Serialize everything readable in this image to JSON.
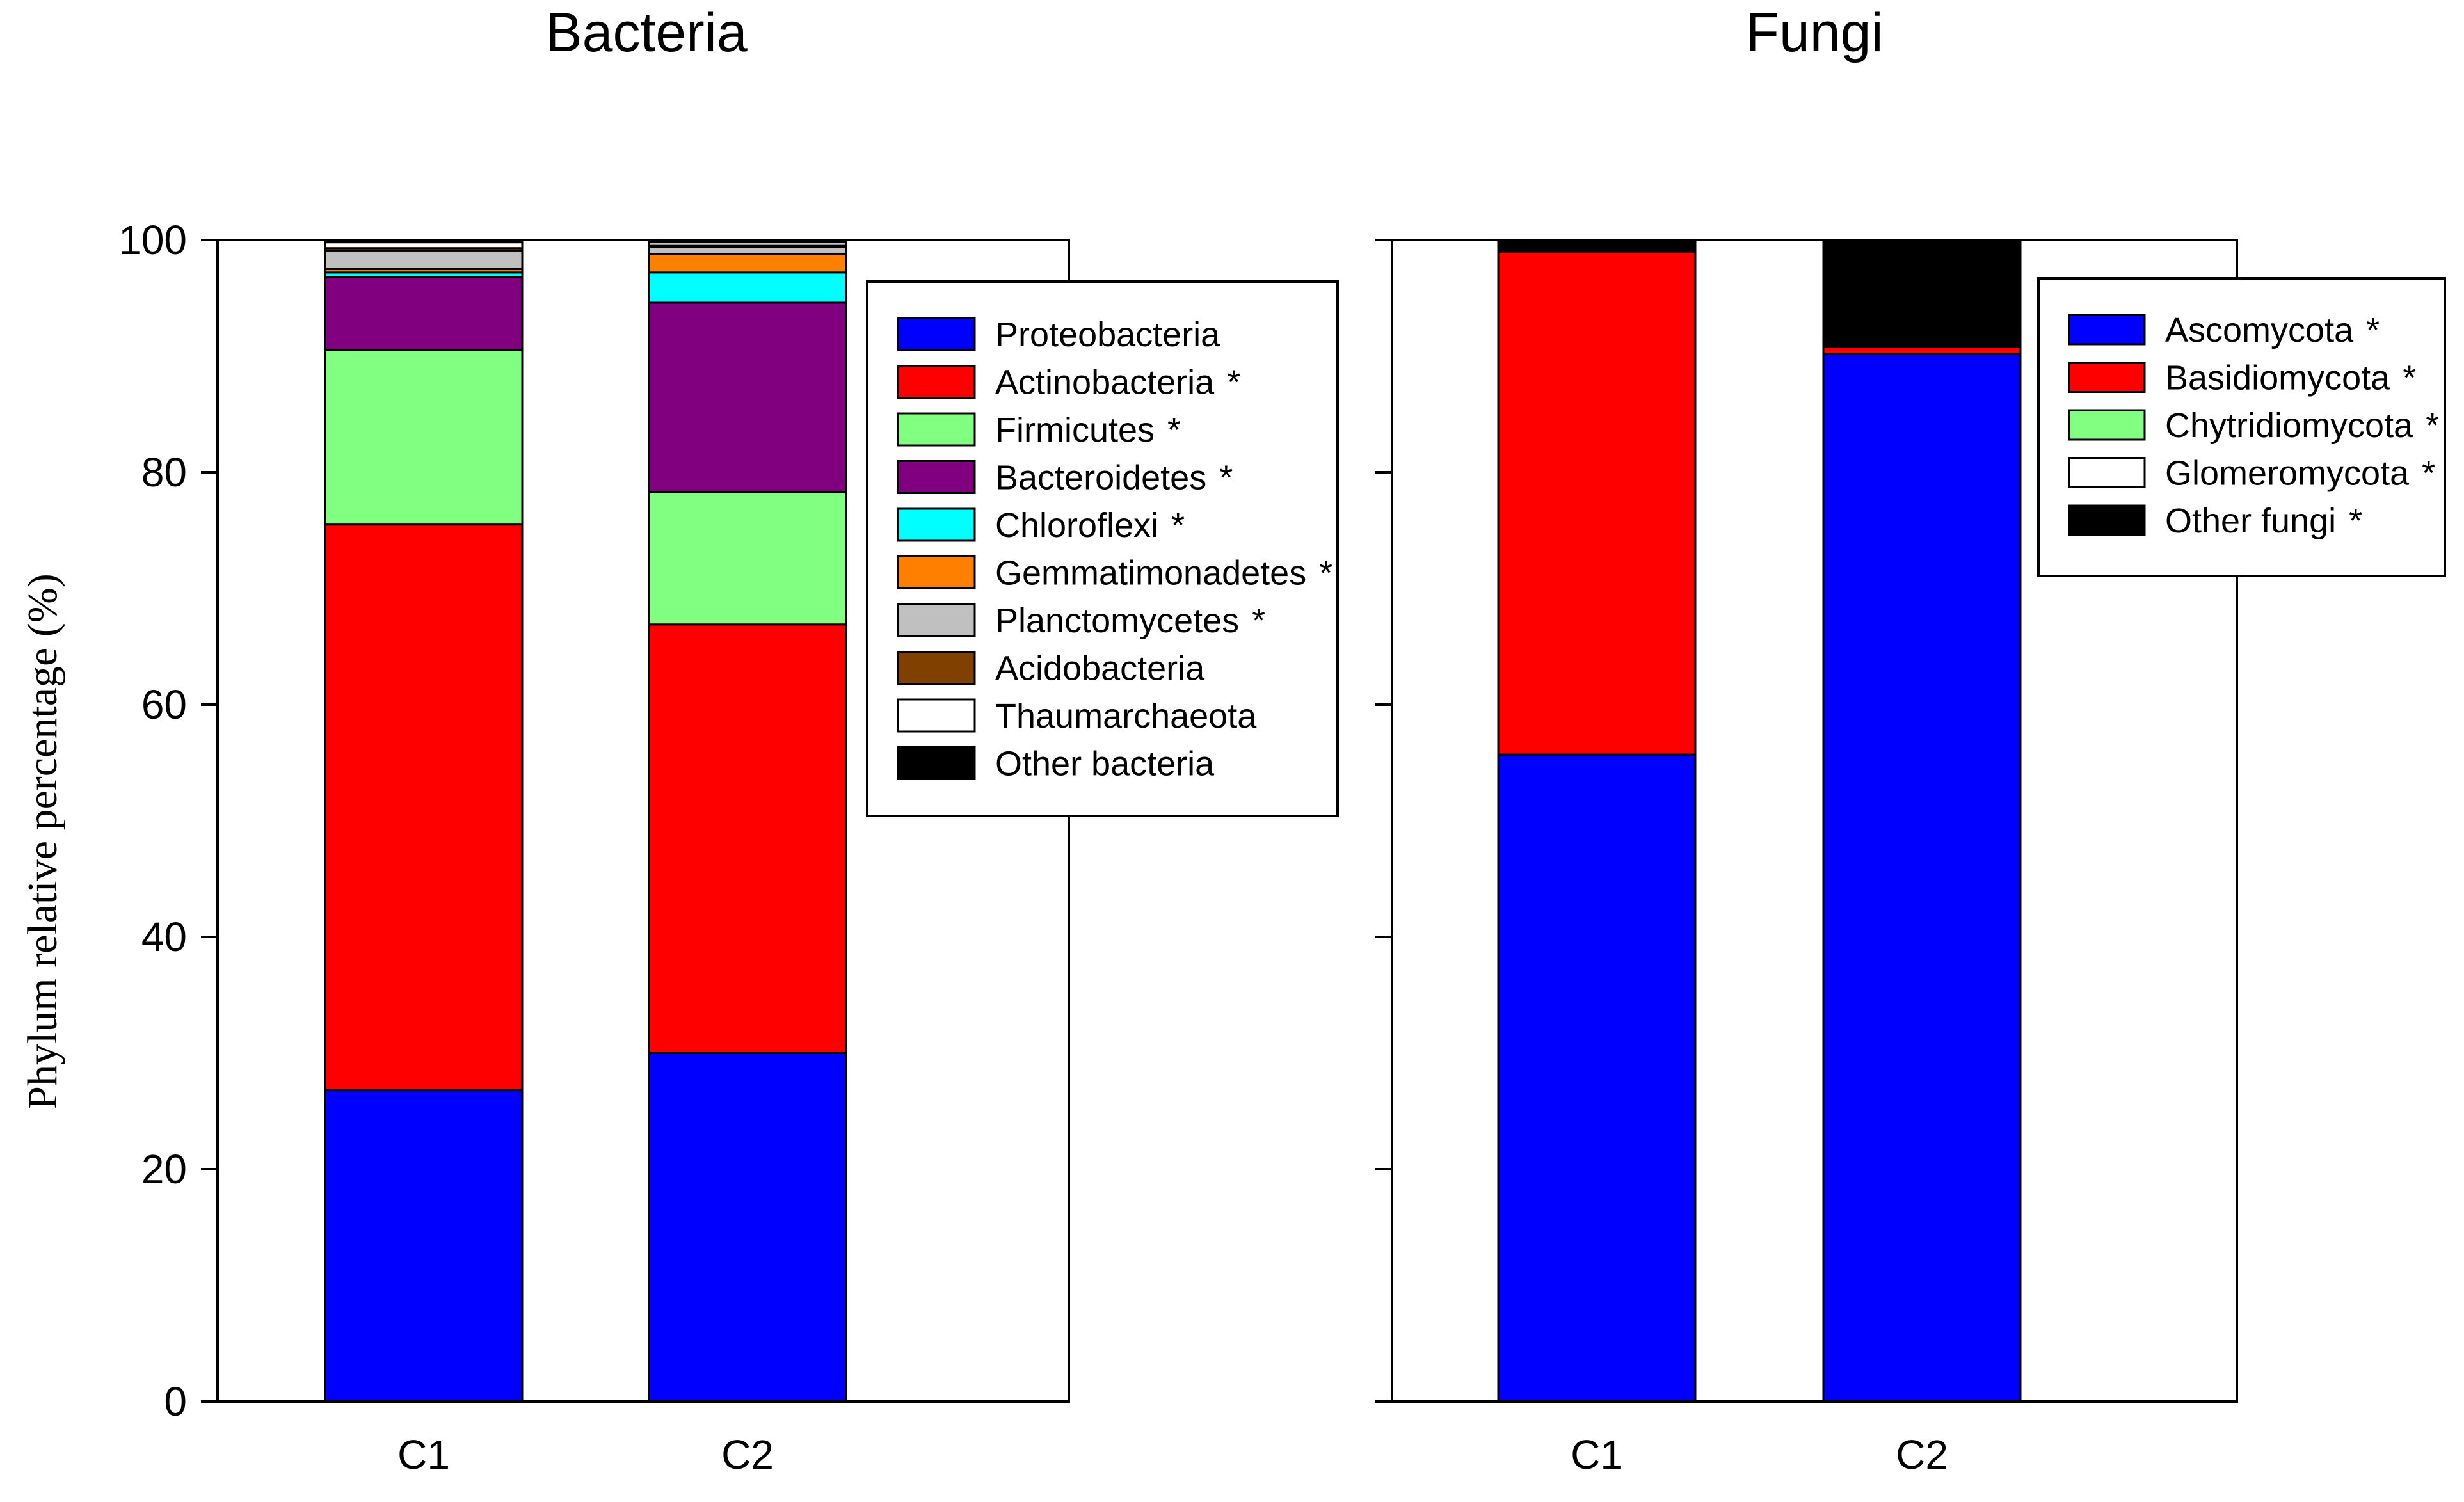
{
  "chart_data": [
    {
      "type": "bar",
      "stacked": true,
      "title": "Bacteria",
      "ylabel": "Phylum relative percentage (%)",
      "ylim": [
        0,
        100
      ],
      "yticks": [
        0,
        20,
        40,
        60,
        80,
        100
      ],
      "categories": [
        "C1",
        "C2"
      ],
      "legend_position": "top-right",
      "series": [
        {
          "name": "Proteobacteria",
          "star": "",
          "color": "#0000ff",
          "values": [
            26.8,
            30.0
          ]
        },
        {
          "name": "Actinobacteria",
          "star": "*",
          "color": "#ff0000",
          "values": [
            48.7,
            36.9
          ]
        },
        {
          "name": "Firmicutes",
          "star": "*",
          "color": "#80ff80",
          "values": [
            15.0,
            11.4
          ]
        },
        {
          "name": "Bacteroidetes",
          "star": "*",
          "color": "#800080",
          "values": [
            6.3,
            16.3
          ]
        },
        {
          "name": "Chloroflexi",
          "star": "*",
          "color": "#00ffff",
          "values": [
            0.4,
            2.6
          ]
        },
        {
          "name": "Gemmatimonadetes",
          "star": "*",
          "color": "#ff8000",
          "values": [
            0.3,
            1.6
          ]
        },
        {
          "name": "Planctomycetes",
          "star": "*",
          "color": "#c0c0c0",
          "values": [
            1.6,
            0.6
          ]
        },
        {
          "name": "Acidobacteria",
          "star": "",
          "color": "#804000",
          "values": [
            0.2,
            0.1
          ]
        },
        {
          "name": "Thaumarchaeota",
          "star": "",
          "color": "#ffffff",
          "values": [
            0.5,
            0.3
          ]
        },
        {
          "name": "Other bacteria",
          "star": "",
          "color": "#000000",
          "values": [
            0.2,
            0.2
          ]
        }
      ]
    },
    {
      "type": "bar",
      "stacked": true,
      "title": "Fungi",
      "ylim": [
        0,
        100
      ],
      "categories": [
        "C1",
        "C2"
      ],
      "legend_position": "top-right",
      "series": [
        {
          "name": "Ascomycota",
          "star": "*",
          "color": "#0000ff",
          "values": [
            55.7,
            90.2
          ]
        },
        {
          "name": "Basidiomycota",
          "star": "*",
          "color": "#ff0000",
          "values": [
            43.3,
            0.6
          ]
        },
        {
          "name": "Chytridiomycota",
          "star": "*",
          "color": "#80ff80",
          "values": [
            0.0,
            0.0
          ]
        },
        {
          "name": "Glomeromycota",
          "star": "*",
          "color": "#ffffff",
          "values": [
            0.1,
            0.0
          ]
        },
        {
          "name": "Other fungi",
          "star": "*",
          "color": "#000000",
          "values": [
            0.9,
            9.2
          ]
        }
      ]
    }
  ]
}
